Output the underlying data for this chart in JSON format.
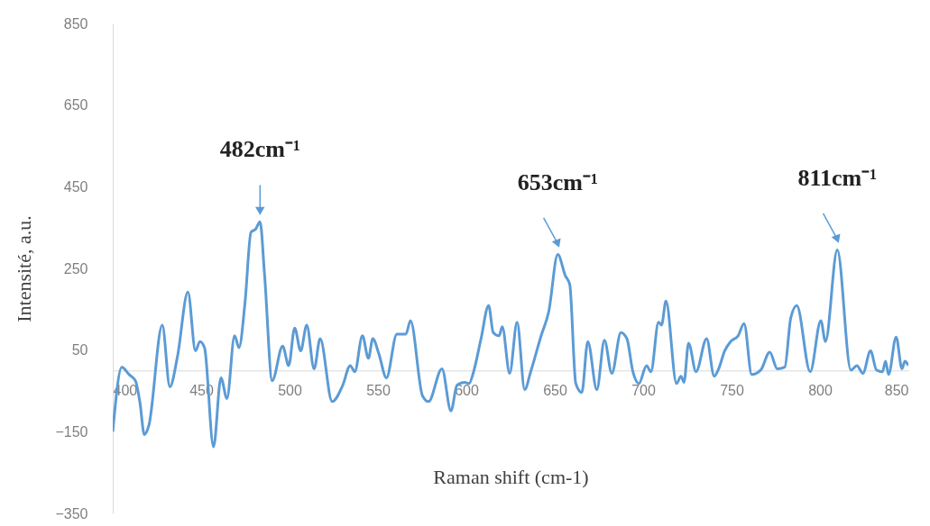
{
  "chart_data": {
    "type": "line",
    "xlabel": "Raman shift (cm-1)",
    "ylabel": "Intensité, a.u.",
    "xlim": [
      400,
      850
    ],
    "xticks": [
      400,
      450,
      500,
      550,
      600,
      650,
      700,
      750,
      800,
      850
    ],
    "ylim": [
      -350,
      850
    ],
    "yticks": [
      -350,
      -150,
      50,
      250,
      450,
      650,
      850
    ],
    "grid": false,
    "marker": "none",
    "line_style": "solid",
    "annotations": [
      {
        "text": "482cm⁻¹",
        "x": 483.3,
        "y": 364
      },
      {
        "text": "653cm⁻¹",
        "x": 651.7,
        "y": 284
      },
      {
        "text": "811cm⁻¹",
        "x": 809.8,
        "y": 295
      }
    ],
    "series": [
      {
        "color": "#5b9bd5",
        "x": [
          400,
          405.1,
          409.3,
          412.8,
          415.3,
          417.9,
          420.4,
          428,
          432.3,
          436.6,
          442.5,
          446.8,
          449.3,
          451.9,
          457,
          461.2,
          464.6,
          468.9,
          471.4,
          474.8,
          478.2,
          480.8,
          483.3,
          485.9,
          490.2,
          496.1,
          499.5,
          502.9,
          506.3,
          509.7,
          513.9,
          517.3,
          524.1,
          530.1,
          534.3,
          536.9,
          541.2,
          544.6,
          547.1,
          550.5,
          554.8,
          560.7,
          565.8,
          568.4,
          575.2,
          578.6,
          586.2,
          591.3,
          594.7,
          599,
          601.5,
          604.1,
          608.3,
          612.6,
          615.2,
          618.5,
          620.3,
          624.5,
          628.7,
          633,
          636.4,
          642.3,
          646.6,
          651.7,
          656,
          658.5,
          661.9,
          665.3,
          668.7,
          673.8,
          678.1,
          682.3,
          687.4,
          690.8,
          694.2,
          697.6,
          701.9,
          704.4,
          708.7,
          710.4,
          712.9,
          718.9,
          721.4,
          723.1,
          725.7,
          729.9,
          735.9,
          740.2,
          742.7,
          746.1,
          749.5,
          753.7,
          757.1,
          761.4,
          766.5,
          771.6,
          775.9,
          780.1,
          783.5,
          786.9,
          794.5,
          800.5,
          803.1,
          809.8,
          817.5,
          820.9,
          824.3,
          828.6,
          832,
          835.4,
          837.1,
          838.8,
          843.1,
          846.4,
          848.1,
          850
        ],
        "values": [
          -150,
          8,
          -10,
          -25,
          -76,
          -157,
          -135,
          111,
          -40,
          34,
          192,
          48,
          71,
          56,
          -187,
          -18,
          -69,
          85,
          56,
          166,
          339,
          346,
          364,
          232,
          -25,
          60,
          12,
          104,
          48,
          111,
          4,
          78,
          -76,
          -36,
          12,
          -3,
          85,
          30,
          78,
          41,
          -18,
          89,
          89,
          122,
          -62,
          -76,
          4,
          -99,
          -36,
          -29,
          -32,
          -3,
          78,
          159,
          93,
          85,
          107,
          -7,
          118,
          -47,
          -3,
          85,
          144,
          284,
          232,
          210,
          -32,
          -54,
          71,
          -47,
          74,
          -7,
          93,
          78,
          -3,
          -32,
          12,
          -3,
          118,
          111,
          170,
          -32,
          -14,
          -29,
          67,
          -3,
          78,
          -14,
          4,
          48,
          71,
          85,
          115,
          -10,
          1,
          45,
          4,
          8,
          129,
          159,
          -3,
          122,
          71,
          295,
          1,
          12,
          -7,
          48,
          1,
          -3,
          23,
          -10,
          82,
          4,
          23,
          12
        ]
      }
    ]
  }
}
